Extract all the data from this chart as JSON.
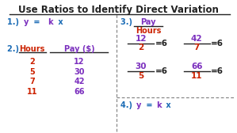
{
  "title": "Use Ratios to Identify Direct Variation",
  "bg_color": "#ffffff",
  "title_color": "#000000",
  "blue_color": "#1a6bb5",
  "red_color": "#cc2200",
  "purple_color": "#7b2fbe",
  "dark_color": "#222222",
  "dashed_color": "#888888",
  "table_hours": [
    "2",
    "5",
    "7",
    "11"
  ],
  "table_pay": [
    "12",
    "30",
    "42",
    "66"
  ],
  "ratios": [
    {
      "num": "12",
      "den": "2",
      "result": "=6"
    },
    {
      "num": "42",
      "den": "7",
      "result": "=6"
    },
    {
      "num": "30",
      "den": "5",
      "result": "=6"
    },
    {
      "num": "66",
      "den": "11",
      "result": "=6"
    }
  ]
}
